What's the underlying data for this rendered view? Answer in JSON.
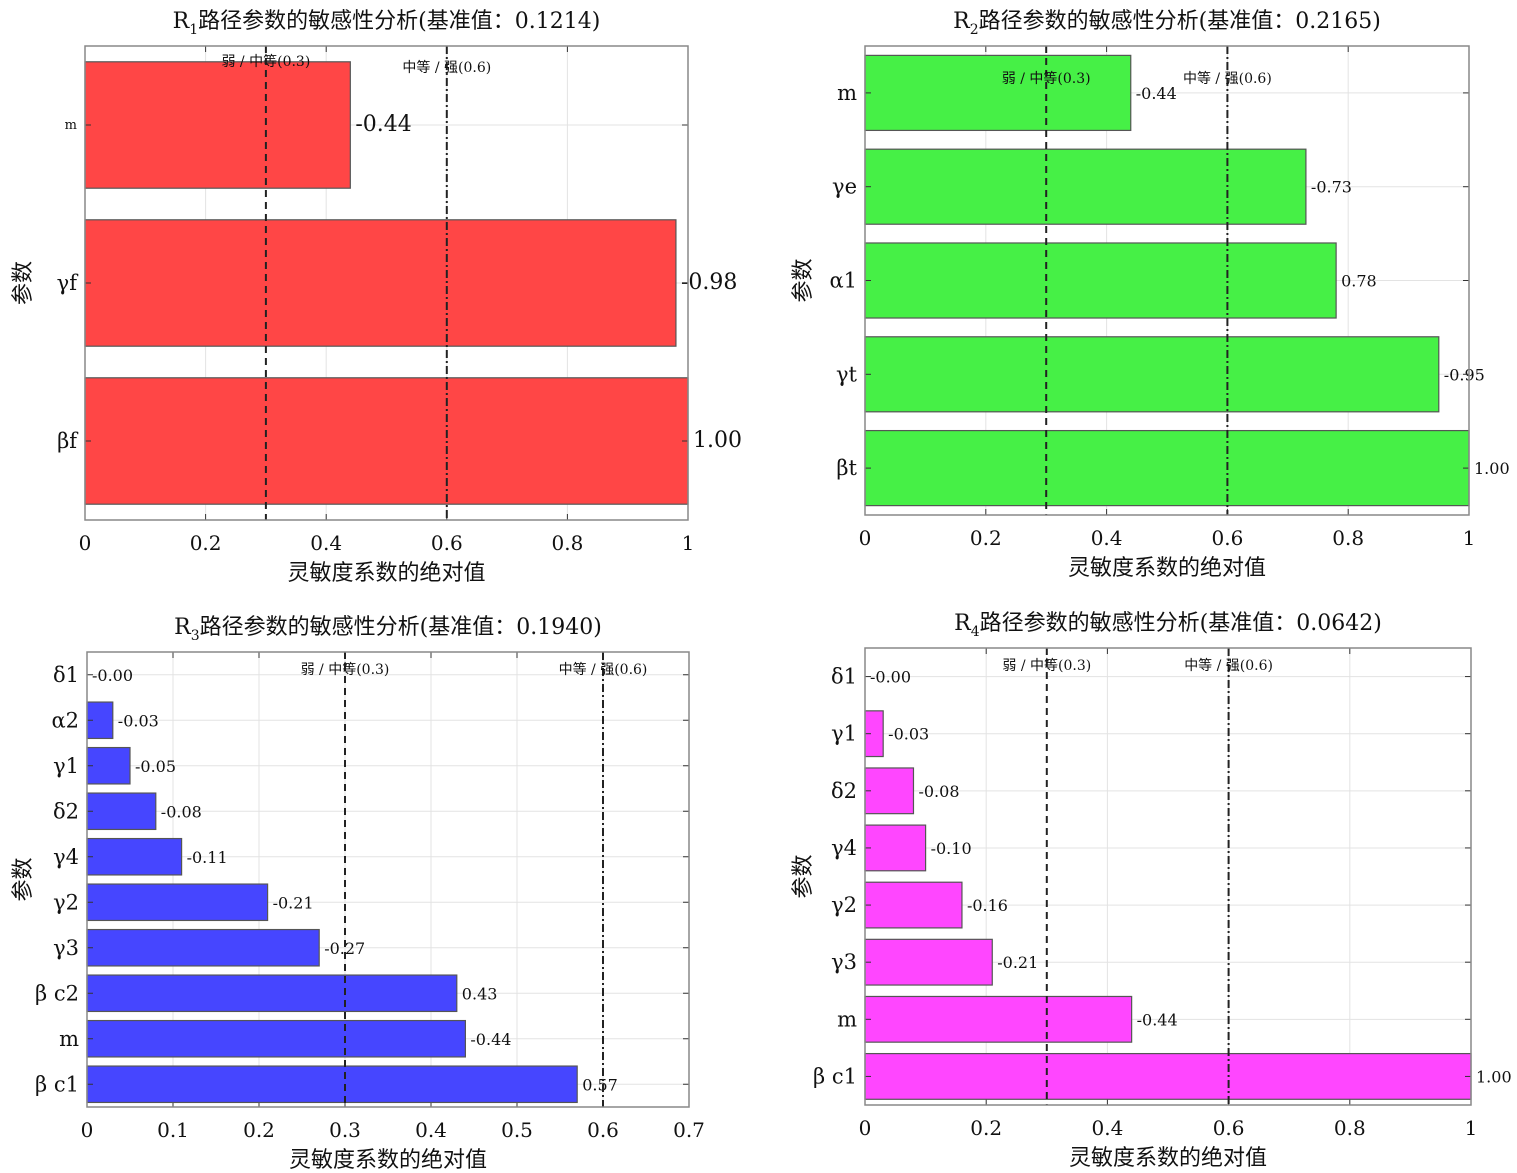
{
  "chart_data": [
    {
      "type": "bar",
      "orientation": "horizontal",
      "title_prefix": "R",
      "title_sub": "1",
      "title_rest": "路径参数的敏感性分析(基准值：0.1214)",
      "xlabel": "灵敏度系数的绝对值",
      "ylabel": "参数",
      "xlim": [
        0,
        1
      ],
      "xticks": [
        0,
        0.2,
        0.4,
        0.6,
        0.8,
        1
      ],
      "xtick_labels": [
        "0",
        "0.2",
        "0.4",
        "0.6",
        "0.8",
        "1"
      ],
      "categories": [
        "m",
        "γf",
        "βf"
      ],
      "values": [
        -0.44,
        -0.98,
        1.0
      ],
      "value_labels": [
        "-0.44",
        "-0.98",
        "1.00"
      ],
      "color": "#ff4646",
      "grid": true,
      "thresholds": [
        {
          "x": 0.3,
          "label": "弱 / 中等(0.3)",
          "style": "dashed"
        },
        {
          "x": 0.6,
          "label": "中等 / 强(0.6)",
          "style": "dashdot"
        }
      ]
    },
    {
      "type": "bar",
      "orientation": "horizontal",
      "title_prefix": "R",
      "title_sub": "2",
      "title_rest": "路径参数的敏感性分析(基准值：0.2165)",
      "xlabel": "灵敏度系数的绝对值",
      "ylabel": "参数",
      "xlim": [
        0,
        1
      ],
      "xticks": [
        0,
        0.2,
        0.4,
        0.6,
        0.8,
        1
      ],
      "xtick_labels": [
        "0",
        "0.2",
        "0.4",
        "0.6",
        "0.8",
        "1"
      ],
      "categories": [
        "m",
        "γe",
        "α1",
        "γt",
        "βt"
      ],
      "values": [
        -0.44,
        -0.73,
        0.78,
        -0.95,
        1.0
      ],
      "value_labels": [
        "-0.44",
        "-0.73",
        "0.78",
        "-0.95",
        "1.00"
      ],
      "color": "#46f046",
      "grid": true,
      "thresholds": [
        {
          "x": 0.3,
          "label": "弱 / 中等(0.3)",
          "style": "dashed"
        },
        {
          "x": 0.6,
          "label": "中等 / 强(0.6)",
          "style": "dashdot"
        }
      ]
    },
    {
      "type": "bar",
      "orientation": "horizontal",
      "title_prefix": "R",
      "title_sub": "3",
      "title_rest": "路径参数的敏感性分析(基准值：0.1940)",
      "xlabel": "灵敏度系数的绝对值",
      "ylabel": "参数",
      "xlim": [
        0,
        0.7
      ],
      "xticks": [
        0,
        0.1,
        0.2,
        0.3,
        0.4,
        0.5,
        0.6,
        0.7
      ],
      "xtick_labels": [
        "0",
        "0.1",
        "0.2",
        "0.3",
        "0.4",
        "0.5",
        "0.6",
        "0.7"
      ],
      "categories": [
        "δ1",
        "α2",
        "γ1",
        "δ2",
        "γ4",
        "γ2",
        "γ3",
        "β c2",
        "m",
        "β c1"
      ],
      "values": [
        -0.0,
        -0.03,
        -0.05,
        -0.08,
        -0.11,
        -0.21,
        -0.27,
        0.43,
        -0.44,
        0.57
      ],
      "value_labels": [
        "-0.00",
        "-0.03",
        "-0.05",
        "-0.08",
        "-0.11",
        "-0.21",
        "-0.27",
        "0.43",
        "-0.44",
        "0.57"
      ],
      "color": "#4646ff",
      "grid": true,
      "thresholds": [
        {
          "x": 0.3,
          "label": "弱 / 中等(0.3)",
          "style": "dashed"
        },
        {
          "x": 0.6,
          "label": "中等 / 强(0.6)",
          "style": "dashdot"
        }
      ]
    },
    {
      "type": "bar",
      "orientation": "horizontal",
      "title_prefix": "R",
      "title_sub": "4",
      "title_rest": "路径参数的敏感性分析(基准值：0.0642)",
      "xlabel": "灵敏度系数的绝对值",
      "ylabel": "参数",
      "xlim": [
        0,
        1
      ],
      "xticks": [
        0,
        0.2,
        0.4,
        0.6,
        0.8,
        1
      ],
      "xtick_labels": [
        "0",
        "0.2",
        "0.4",
        "0.6",
        "0.8",
        "1"
      ],
      "categories": [
        "δ1",
        "γ1",
        "δ2",
        "γ4",
        "γ2",
        "γ3",
        "m",
        "β c1"
      ],
      "values": [
        -0.0,
        -0.03,
        -0.08,
        -0.1,
        -0.16,
        -0.21,
        -0.44,
        1.0
      ],
      "value_labels": [
        "-0.00",
        "-0.03",
        "-0.08",
        "-0.10",
        "-0.16",
        "-0.21",
        "-0.44",
        "1.00"
      ],
      "color": "#ff46ff",
      "grid": true,
      "thresholds": [
        {
          "x": 0.3,
          "label": "弱 / 中等(0.3)",
          "style": "dashed"
        },
        {
          "x": 0.6,
          "label": "中等 / 强(0.6)",
          "style": "dashdot"
        }
      ]
    }
  ]
}
